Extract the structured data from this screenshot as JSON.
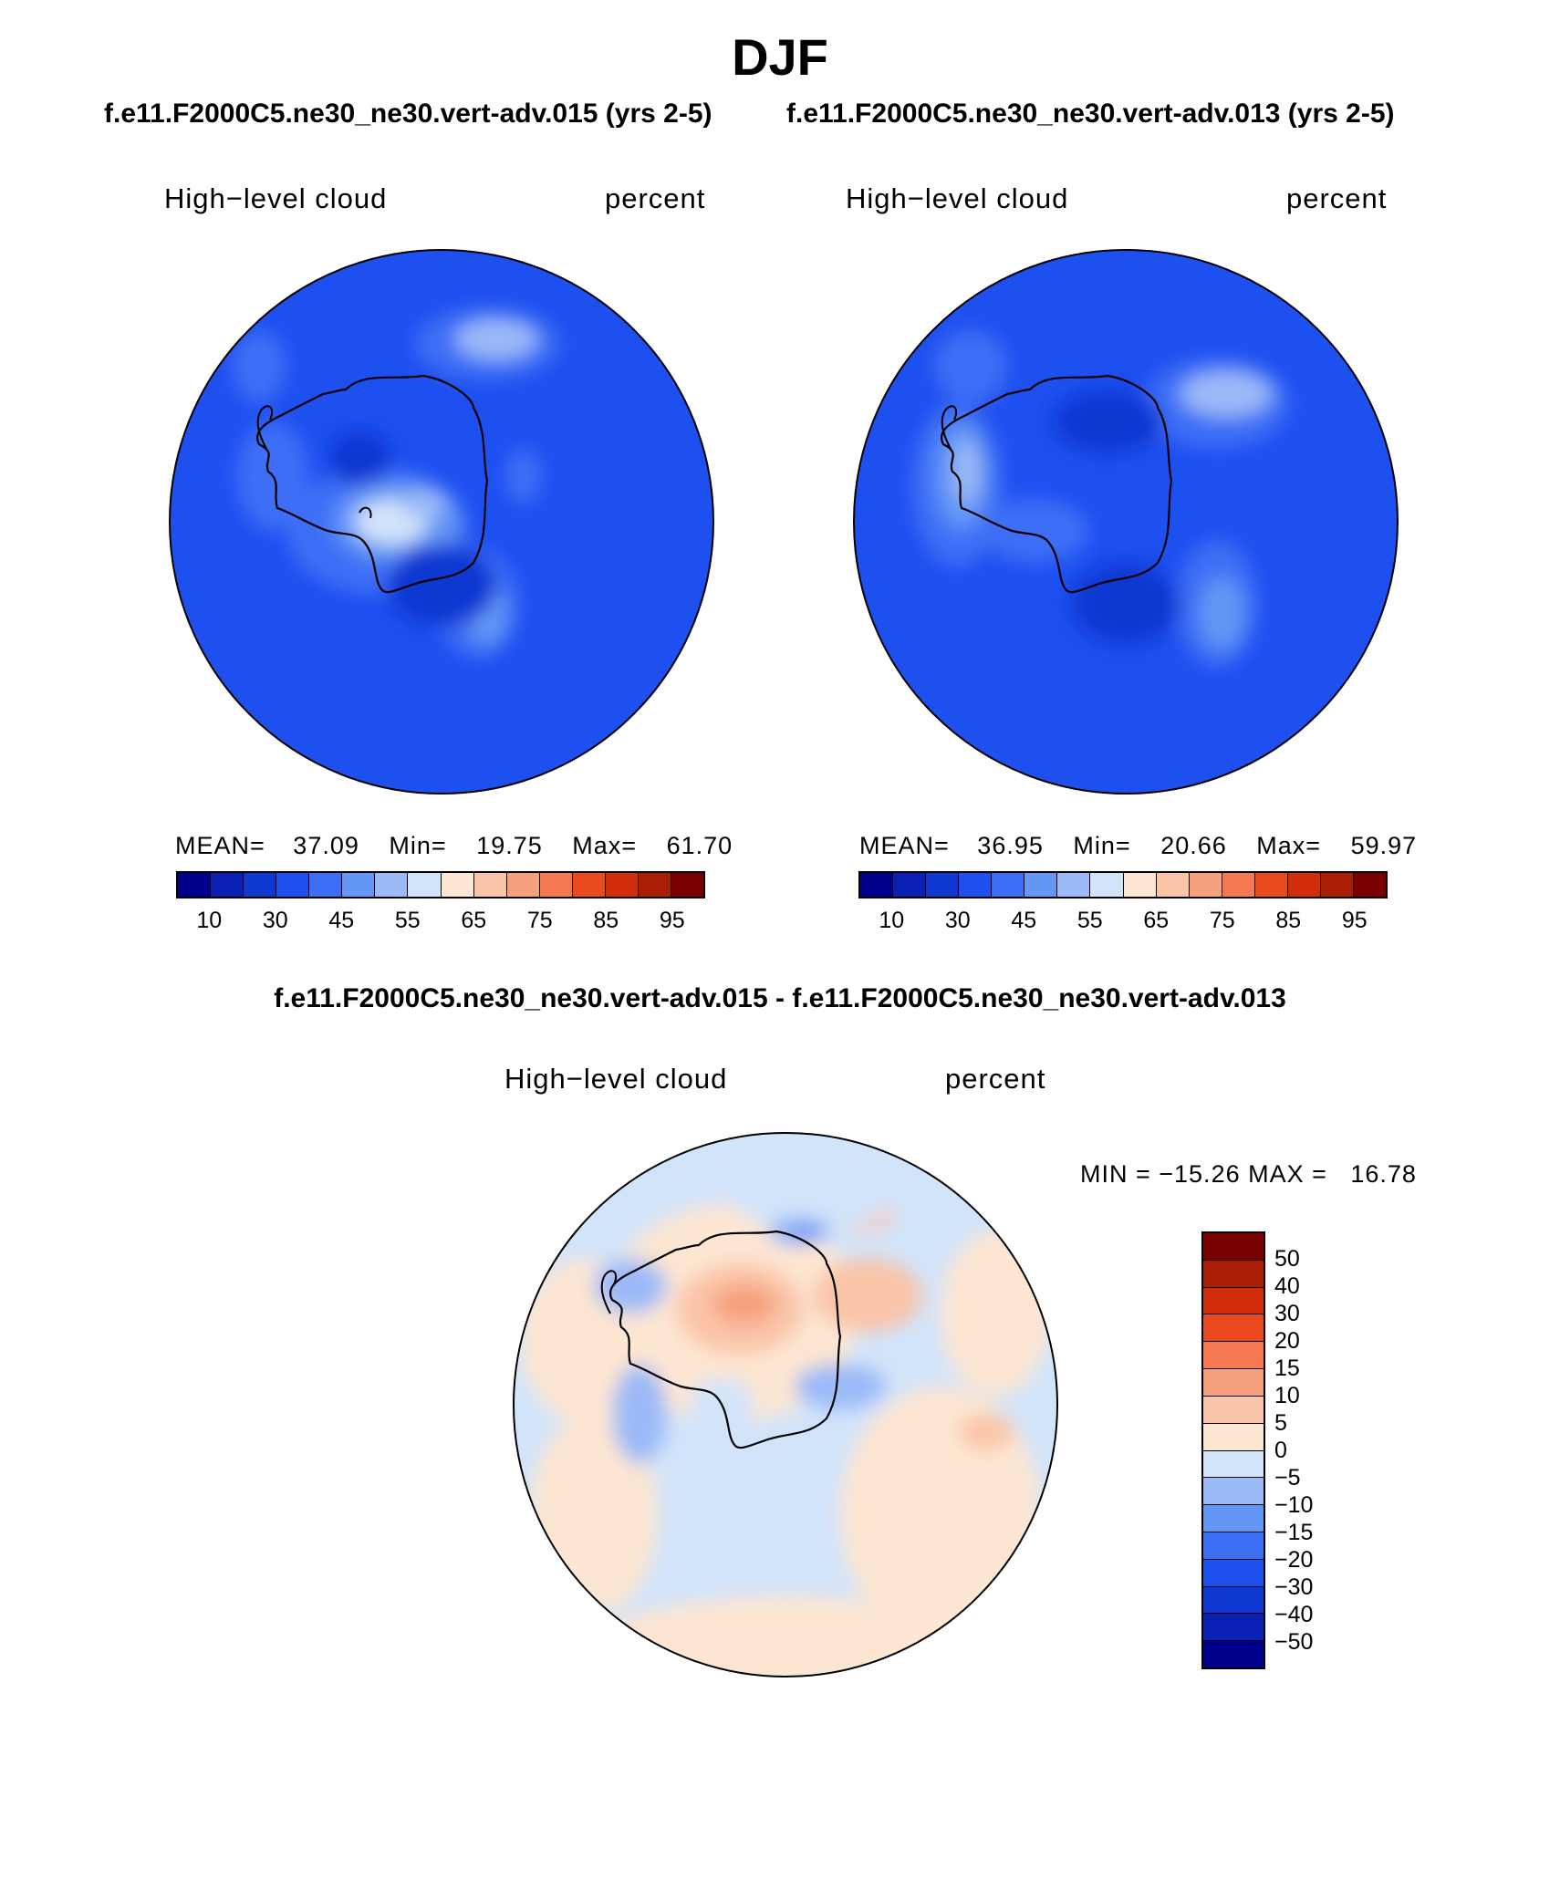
{
  "season": "DJF",
  "left_title": "f.e11.F2000C5.ne30_ne30.vert-adv.015 (yrs 2-5)",
  "right_title": "f.e11.F2000C5.ne30_ne30.vert-adv.013 (yrs 2-5)",
  "diff_title": "f.e11.F2000C5.ne30_ne30.vert-adv.015 - f.e11.F2000C5.ne30_ne30.vert-adv.013",
  "panel1": {
    "variable": "High−level cloud",
    "units": "percent",
    "mean_label": "MEAN=",
    "mean": "37.09",
    "min_label": "Min=",
    "min": "19.75",
    "max_label": "Max=",
    "max": "61.70"
  },
  "panel2": {
    "variable": "High−level cloud",
    "units": "percent",
    "mean_label": "MEAN=",
    "mean": "36.95",
    "min_label": "Min=",
    "min": "20.66",
    "max_label": "Max=",
    "max": "59.97"
  },
  "panel3": {
    "variable": "High−level cloud",
    "units": "percent",
    "minmax": "MIN = −15.26 MAX =   16.78"
  },
  "abs_colorbar": {
    "colors": [
      "#00008c",
      "#0a20b4",
      "#0f37d2",
      "#1e50f0",
      "#3c6ef5",
      "#6496f5",
      "#9bbaf7",
      "#d2e4fa",
      "#fde6d2",
      "#fac4a8",
      "#f7a07d",
      "#f57850",
      "#eb4a1e",
      "#d22d0a",
      "#aa1e05",
      "#780000"
    ],
    "ticks": [
      "10",
      "30",
      "45",
      "55",
      "65",
      "75",
      "85",
      "95"
    ]
  },
  "diff_colorbar": {
    "colors": [
      "#780000",
      "#aa1e05",
      "#d22d0a",
      "#eb4a1e",
      "#f57850",
      "#f7a07d",
      "#fac4a8",
      "#fde6d2",
      "#d2e4fa",
      "#9bbaf7",
      "#6496f5",
      "#3c6ef5",
      "#1e50f0",
      "#0f37d2",
      "#0a20b4",
      "#00008c"
    ],
    "ticks": [
      "50",
      "40",
      "30",
      "20",
      "15",
      "10",
      "5",
      "0",
      "−5",
      "−10",
      "−15",
      "−20",
      "−30",
      "−40",
      "−50"
    ]
  }
}
